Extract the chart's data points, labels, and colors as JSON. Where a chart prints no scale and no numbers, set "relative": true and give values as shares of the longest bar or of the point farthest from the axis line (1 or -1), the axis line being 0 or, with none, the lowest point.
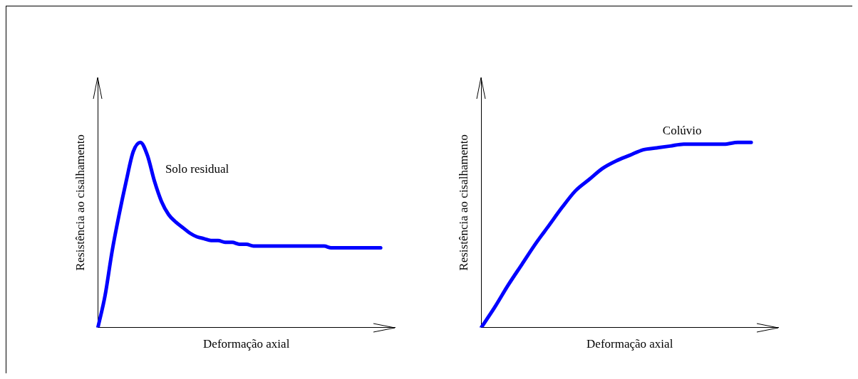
{
  "chart_data": [
    {
      "type": "line",
      "xlabel": "Deformação axial",
      "ylabel": "Resistência ao cisalhamento",
      "relative": true,
      "tick_labels": false,
      "marker": "none",
      "line_style": "solid",
      "legend": false,
      "categories": [
        null,
        null,
        null,
        null,
        null,
        null,
        null,
        null,
        null,
        null,
        null,
        null,
        null,
        null,
        null,
        null,
        null,
        null,
        null,
        null,
        null,
        null,
        null,
        null,
        null,
        null,
        null,
        null,
        null,
        null,
        null,
        null,
        null,
        null,
        null,
        null,
        null,
        null,
        null,
        null,
        null,
        null,
        null
      ],
      "series": [
        {
          "name": "Solo residual",
          "color": "#0000ff",
          "values": [
            0,
            0.17,
            0.41,
            0.61,
            0.79,
            0.95,
            1,
            0.93,
            0.79,
            0.68,
            0.61,
            0.57,
            0.54,
            0.51,
            0.49,
            0.48,
            0.47,
            0.47,
            0.46,
            0.46,
            0.45,
            0.45,
            0.44,
            0.44,
            0.44,
            0.44,
            0.44,
            0.44,
            0.44,
            0.44,
            0.44,
            0.44,
            0.44,
            0.43,
            0.43,
            0.43,
            0.43,
            0.43,
            0.43,
            0.43,
            0.43,
            null,
            null
          ]
        }
      ]
    },
    {
      "type": "line",
      "xlabel": "Deformação axial",
      "ylabel": "Resistência ao cisalhamento",
      "relative": true,
      "tick_labels": false,
      "marker": "none",
      "line_style": "solid",
      "legend": false,
      "categories": [
        null,
        null,
        null,
        null,
        null,
        null,
        null,
        null,
        null,
        null,
        null,
        null,
        null,
        null,
        null,
        null,
        null,
        null,
        null,
        null,
        null,
        null,
        null
      ],
      "series": [
        {
          "name": "Colúvio",
          "color": "#0000ff",
          "values": [
            0,
            0.11,
            0.23,
            0.34,
            0.45,
            0.55,
            0.65,
            0.74,
            0.8,
            0.86,
            0.9,
            0.93,
            0.96,
            0.97,
            0.98,
            0.99,
            0.99,
            0.99,
            0.99,
            1,
            1,
            null,
            null
          ]
        }
      ]
    }
  ]
}
